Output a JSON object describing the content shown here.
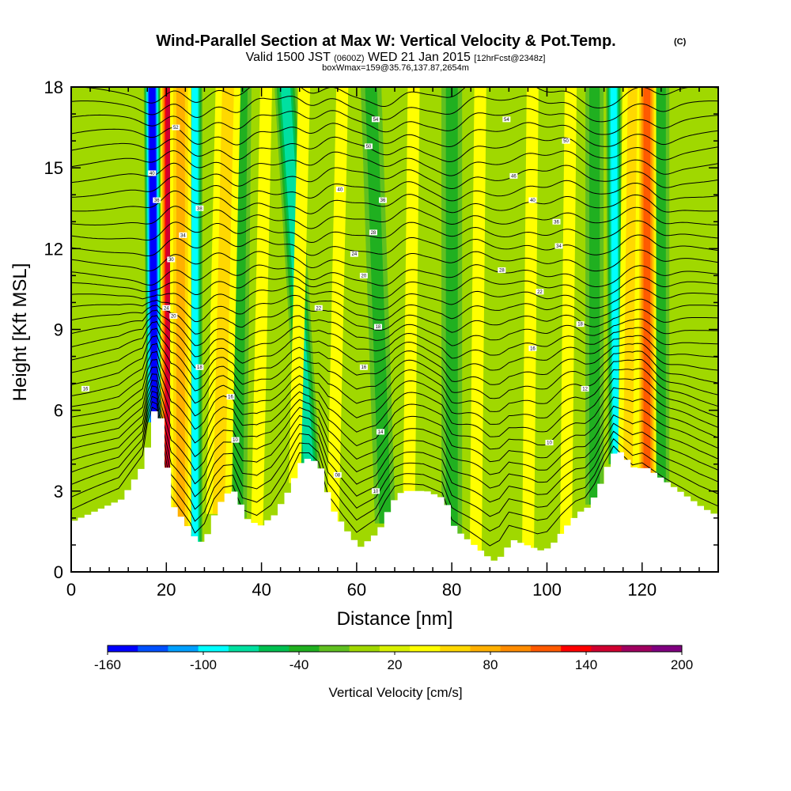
{
  "chart_data": {
    "type": "heatmap",
    "title": "Wind-Parallel Section at Max W: Vertical Velocity & Pot.Temp.",
    "title_suffix": "(C)",
    "subtitle_parts": [
      "Valid 1500 JST ",
      "(0600Z)",
      " WED 21 Jan 2015 ",
      "[12hrFcst@2348z]"
    ],
    "subtitle2": "boxWmax=159@35.76,137.87,2654m",
    "xlabel": "Distance [nm]",
    "ylabel": "Height [Kft MSL]",
    "xlim": [
      0,
      136
    ],
    "ylim": [
      0,
      18
    ],
    "x_ticks": [
      "0",
      "20",
      "40",
      "60",
      "80",
      "100",
      "120"
    ],
    "y_ticks": [
      "0",
      "3",
      "6",
      "9",
      "12",
      "15",
      "18"
    ],
    "colorbar": {
      "title": "Vertical Velocity [cm/s]",
      "min": -160,
      "max": 200,
      "labels": [
        "-160",
        "-100",
        "-40",
        "20",
        "80",
        "140",
        "200"
      ],
      "colors": [
        "#0000ff",
        "#0050ff",
        "#00a0ff",
        "#00ffff",
        "#00e0a0",
        "#00c050",
        "#20b020",
        "#60c020",
        "#a0d800",
        "#d8f000",
        "#ffff00",
        "#ffd800",
        "#ffb000",
        "#ff8c00",
        "#ff5a00",
        "#ff0000",
        "#d00030",
        "#a00060",
        "#800080"
      ]
    },
    "terrain": {
      "x": [
        0,
        5,
        10,
        15,
        16,
        17,
        18,
        19,
        21,
        25,
        26,
        28,
        30,
        32,
        34,
        36,
        39,
        42,
        45,
        48,
        50,
        52,
        54,
        57,
        60,
        62,
        64,
        66,
        68,
        70,
        74,
        78,
        80,
        84,
        88,
        90,
        92,
        95,
        98,
        100,
        103,
        106,
        108,
        110,
        112,
        114,
        116,
        118,
        120,
        124,
        128,
        132,
        136
      ],
      "height_kft": [
        1.9,
        2.3,
        2.7,
        4.1,
        5.4,
        6.1,
        6.0,
        4.5,
        2.4,
        1.4,
        1.0,
        1.4,
        2.4,
        2.9,
        3.0,
        2.0,
        1.7,
        2.1,
        3.0,
        4.2,
        4.2,
        3.8,
        2.4,
        1.6,
        0.9,
        1.2,
        1.5,
        2.3,
        2.9,
        3.0,
        3.0,
        2.7,
        1.6,
        1.0,
        0.4,
        0.6,
        1.2,
        1.0,
        0.8,
        0.9,
        1.6,
        2.2,
        2.4,
        3.0,
        3.9,
        4.6,
        4.2,
        3.8,
        3.9,
        3.4,
        2.9,
        2.4,
        2.0
      ]
    },
    "updraft_bands": [
      {
        "x": 20.5,
        "top_x": 20.5,
        "w_cm_s": 150,
        "width_nm": 1.2
      },
      {
        "x": 23,
        "top_x": 23,
        "w_cm_s": 80,
        "width_nm": 1.8
      },
      {
        "x": 31,
        "top_x": 33,
        "w_cm_s": 60,
        "width_nm": 2.5
      },
      {
        "x": 39,
        "top_x": 41,
        "w_cm_s": 45,
        "width_nm": 2.5
      },
      {
        "x": 47,
        "top_x": 49,
        "w_cm_s": 45,
        "width_nm": 2.5
      },
      {
        "x": 55,
        "top_x": 57,
        "w_cm_s": 35,
        "width_nm": 2.5
      },
      {
        "x": 71,
        "top_x": 72,
        "w_cm_s": 35,
        "width_nm": 2.5
      },
      {
        "x": 85,
        "top_x": 86,
        "w_cm_s": 35,
        "width_nm": 2.5
      },
      {
        "x": 96,
        "top_x": 97,
        "w_cm_s": 35,
        "width_nm": 2.5
      },
      {
        "x": 104,
        "top_x": 105,
        "w_cm_s": 35,
        "width_nm": 2.5
      },
      {
        "x": 117,
        "top_x": 118,
        "w_cm_s": 60,
        "width_nm": 2.0
      },
      {
        "x": 121,
        "top_x": 121,
        "w_cm_s": 120,
        "width_nm": 1.4
      }
    ],
    "downdraft_bands": [
      {
        "x": 17.5,
        "top_x": 17,
        "w_cm_s": -150,
        "width_nm": 1.3
      },
      {
        "x": 26,
        "top_x": 26,
        "w_cm_s": -90,
        "width_nm": 1.3
      },
      {
        "x": 35,
        "top_x": 36,
        "w_cm_s": -40,
        "width_nm": 2.2
      },
      {
        "x": 50,
        "top_x": 45,
        "w_cm_s": -70,
        "width_nm": 2.0
      },
      {
        "x": 66,
        "top_x": 63,
        "w_cm_s": -35,
        "width_nm": 2.5
      },
      {
        "x": 80,
        "top_x": 80,
        "w_cm_s": -35,
        "width_nm": 2.5
      },
      {
        "x": 110,
        "top_x": 110,
        "w_cm_s": -45,
        "width_nm": 2.2
      },
      {
        "x": 114.5,
        "top_x": 114,
        "w_cm_s": -100,
        "width_nm": 1.3
      },
      {
        "x": 124,
        "top_x": 124,
        "w_cm_s": -40,
        "width_nm": 2.0
      }
    ],
    "contour_labels": [
      {
        "x": 3,
        "y": 6.8,
        "text": "16"
      },
      {
        "x": 17,
        "y": 14.8,
        "text": "40"
      },
      {
        "x": 18,
        "y": 13.8,
        "text": "36"
      },
      {
        "x": 22,
        "y": 16.5,
        "text": "52"
      },
      {
        "x": 27,
        "y": 13.5,
        "text": "38"
      },
      {
        "x": 23.5,
        "y": 12.5,
        "text": "34"
      },
      {
        "x": 21,
        "y": 11.6,
        "text": "30"
      },
      {
        "x": 20,
        "y": 9.8,
        "text": "24"
      },
      {
        "x": 21.5,
        "y": 9.5,
        "text": "20"
      },
      {
        "x": 27,
        "y": 7.6,
        "text": "18"
      },
      {
        "x": 33.5,
        "y": 6.5,
        "text": "16"
      },
      {
        "x": 34.5,
        "y": 4.9,
        "text": "10"
      },
      {
        "x": 56,
        "y": 3.6,
        "text": "08"
      },
      {
        "x": 65,
        "y": 5.2,
        "text": "14"
      },
      {
        "x": 64,
        "y": 3.0,
        "text": "10"
      },
      {
        "x": 64,
        "y": 16.8,
        "text": "54"
      },
      {
        "x": 62.5,
        "y": 15.8,
        "text": "50"
      },
      {
        "x": 56.5,
        "y": 14.2,
        "text": "40"
      },
      {
        "x": 65.5,
        "y": 13.8,
        "text": "36"
      },
      {
        "x": 63.5,
        "y": 12.6,
        "text": "28"
      },
      {
        "x": 59.5,
        "y": 11.8,
        "text": "24"
      },
      {
        "x": 61.5,
        "y": 11.0,
        "text": "20"
      },
      {
        "x": 52,
        "y": 9.8,
        "text": "22"
      },
      {
        "x": 64.5,
        "y": 9.1,
        "text": "18"
      },
      {
        "x": 61.5,
        "y": 7.6,
        "text": "16"
      },
      {
        "x": 91.5,
        "y": 16.8,
        "text": "54"
      },
      {
        "x": 104,
        "y": 16.0,
        "text": "50"
      },
      {
        "x": 93,
        "y": 14.7,
        "text": "46"
      },
      {
        "x": 97,
        "y": 13.8,
        "text": "40"
      },
      {
        "x": 102,
        "y": 13.0,
        "text": "36"
      },
      {
        "x": 102.5,
        "y": 12.1,
        "text": "34"
      },
      {
        "x": 90.5,
        "y": 11.2,
        "text": "28"
      },
      {
        "x": 98.5,
        "y": 10.4,
        "text": "22"
      },
      {
        "x": 107,
        "y": 9.2,
        "text": "18"
      },
      {
        "x": 97,
        "y": 8.3,
        "text": "16"
      },
      {
        "x": 108,
        "y": 6.8,
        "text": "12"
      },
      {
        "x": 100.5,
        "y": 4.8,
        "text": "10"
      }
    ]
  }
}
